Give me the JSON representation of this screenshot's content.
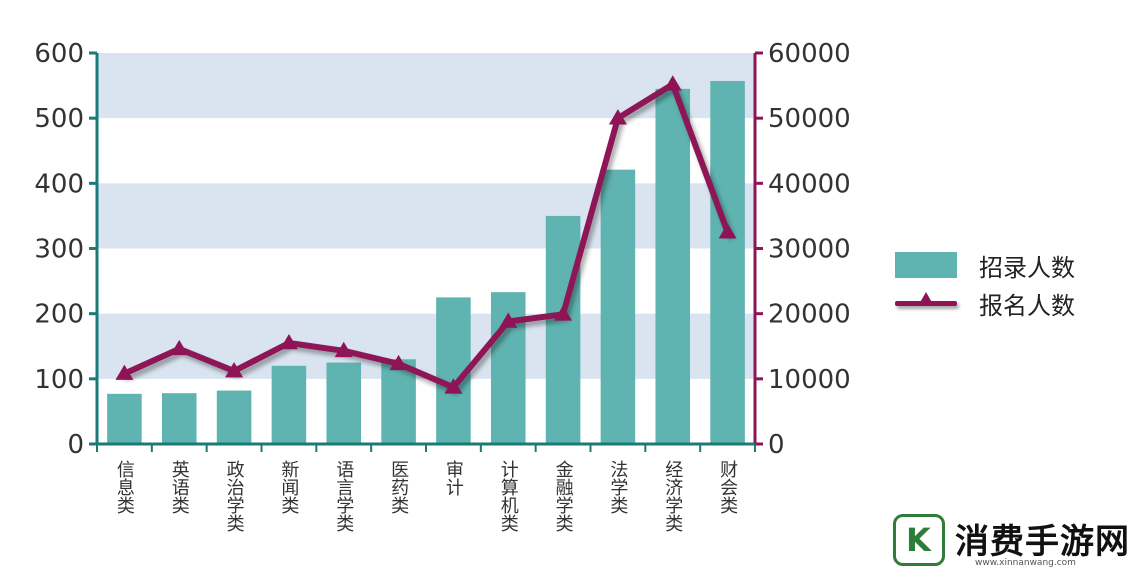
{
  "chart_data": {
    "type": "bar",
    "categories": [
      "信息类",
      "英语类",
      "政治学类",
      "新闻类",
      "语言学类",
      "医药类",
      "审计",
      "计算机类",
      "金融学类",
      "法学类",
      "经济学类",
      "财会类"
    ],
    "series": [
      {
        "name": "招录人数",
        "type": "bar",
        "axis": "left",
        "color": "#5fb3b0",
        "values": [
          77,
          78,
          82,
          120,
          125,
          130,
          225,
          233,
          350,
          421,
          545,
          557
        ]
      },
      {
        "name": "报名人数",
        "type": "line",
        "axis": "right",
        "color": "#8e1457",
        "marker": "triangle",
        "values": [
          10800,
          14600,
          11200,
          15500,
          14300,
          12300,
          8700,
          18800,
          19900,
          50000,
          55200,
          32500
        ]
      }
    ],
    "y_left": {
      "ylim": [
        0,
        600
      ],
      "ticks": [
        0,
        100,
        200,
        300,
        400,
        500,
        600
      ]
    },
    "y_right": {
      "ylim": [
        0,
        60000
      ],
      "ticks": [
        0,
        10000,
        20000,
        30000,
        40000,
        50000,
        60000
      ]
    },
    "band_color": "#d9e4f0",
    "legend_position": "right"
  },
  "legend": {
    "bar_label": "招录人数",
    "line_label": "报名人数"
  },
  "watermark": {
    "logo_letter": "K",
    "name": "消费手游网",
    "url": "www.xinnanwang.com"
  }
}
